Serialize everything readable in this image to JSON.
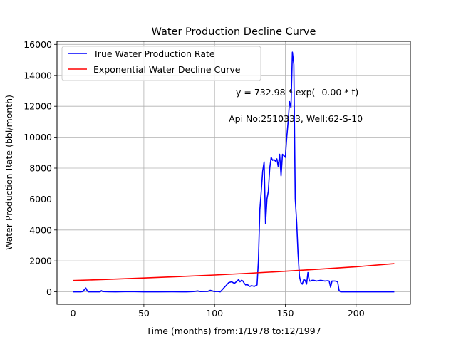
{
  "chart_data": {
    "type": "line",
    "title": "Water Production Decline Curve",
    "xlabel": "Time (months) from:1/1978 to:12/1997",
    "ylabel": "Water Production Rate (bbl/month)",
    "xlim": [
      -11.4,
      238.4
    ],
    "ylim": [
      -800,
      16200
    ],
    "xticks": [
      0,
      50,
      100,
      150,
      200
    ],
    "yticks": [
      0,
      2000,
      4000,
      6000,
      8000,
      10000,
      12000,
      14000,
      16000
    ],
    "grid": true,
    "legend_position": "top-left",
    "annotations": [
      {
        "text": "y = 732.98 * exp(--0.00 * t)",
        "x": 115,
        "y": 12700
      },
      {
        "text": "Api No:2510333, Well:62-S-10",
        "x": 110,
        "y": 11000
      }
    ],
    "series": [
      {
        "name": "True Water Production Rate",
        "color": "#0000ff",
        "x": [
          0,
          5,
          7,
          8,
          9,
          10,
          11,
          15,
          19,
          20,
          21,
          25,
          30,
          40,
          50,
          60,
          70,
          80,
          85,
          88,
          90,
          95,
          97,
          100,
          102,
          104,
          105,
          106,
          107,
          108,
          110,
          112,
          114,
          116,
          117,
          118,
          119,
          120,
          121,
          122,
          123,
          124,
          125,
          126,
          127,
          128,
          129,
          130,
          131,
          132,
          133,
          134,
          135,
          136,
          137,
          138,
          139,
          140,
          141,
          142,
          143,
          144,
          145,
          146,
          147,
          148,
          149,
          150,
          151,
          152,
          153,
          154,
          155,
          156,
          157,
          158,
          159,
          160,
          161,
          162,
          163,
          164,
          165,
          166,
          167,
          168,
          169,
          170,
          172,
          175,
          178,
          180,
          181,
          182,
          183,
          185,
          187,
          188,
          189,
          190,
          200,
          210,
          220,
          227
        ],
        "values": [
          0,
          0,
          20,
          150,
          250,
          60,
          0,
          0,
          0,
          80,
          20,
          10,
          0,
          20,
          0,
          0,
          10,
          0,
          20,
          60,
          20,
          30,
          100,
          20,
          30,
          0,
          100,
          200,
          300,
          400,
          600,
          650,
          550,
          700,
          800,
          650,
          750,
          700,
          550,
          450,
          500,
          400,
          350,
          400,
          380,
          350,
          400,
          450,
          2000,
          5300,
          6500,
          7800,
          8400,
          4400,
          6000,
          6500,
          8000,
          8700,
          8500,
          8550,
          8450,
          8600,
          8100,
          8900,
          7500,
          8900,
          8800,
          8700,
          10000,
          11000,
          12300,
          11900,
          15500,
          14700,
          6000,
          4500,
          2500,
          1000,
          600,
          500,
          800,
          750,
          500,
          1250,
          700,
          700,
          750,
          750,
          700,
          750,
          700,
          720,
          700,
          300,
          700,
          700,
          650,
          100,
          0,
          0,
          0,
          0,
          0,
          0
        ]
      },
      {
        "name": "Exponential Water Decline Curve",
        "color": "#ff0000",
        "x": [
          0,
          25,
          50,
          75,
          100,
          125,
          150,
          175,
          200,
          227
        ],
        "values": [
          733,
          810,
          894,
          988,
          1091,
          1205,
          1331,
          1470,
          1623,
          1820
        ]
      }
    ]
  }
}
